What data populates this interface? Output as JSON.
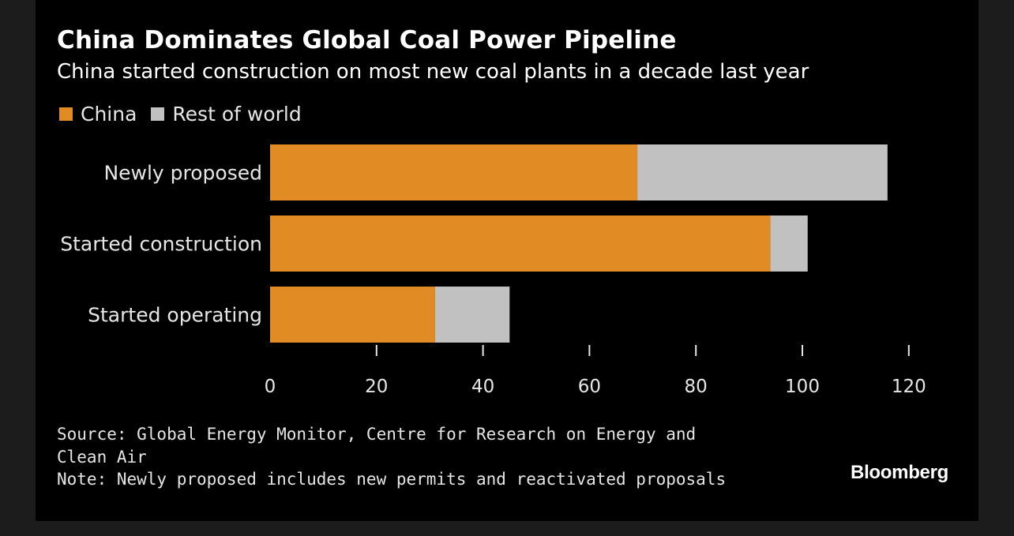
{
  "header": {
    "title": "China Dominates Global Coal Power Pipeline",
    "subtitle": "China started construction on most new coal plants in a decade last year"
  },
  "colors": {
    "china": "#e08b24",
    "rest_of_world": "#c1c1c1",
    "background": "#000000",
    "text": "#e6e6e6"
  },
  "chart_data": {
    "type": "bar",
    "orientation": "horizontal",
    "stacked": true,
    "categories": [
      "Newly proposed",
      "Started construction",
      "Started operating"
    ],
    "series": [
      {
        "name": "China",
        "values": [
          69,
          94,
          31
        ]
      },
      {
        "name": "Rest of world",
        "values": [
          47,
          7,
          14
        ]
      }
    ],
    "xlim": [
      0,
      120
    ],
    "xticks": [
      0,
      20,
      40,
      60,
      80,
      100,
      120
    ],
    "title": "China Dominates Global Coal Power Pipeline",
    "legend_position": "top-left",
    "grid": false
  },
  "footer": {
    "source_line1": "Source: Global Energy Monitor, Centre for Research on Energy and",
    "source_line2": "Clean Air",
    "note": "Note: Newly proposed includes new permits and reactivated proposals",
    "brand": "Bloomberg"
  }
}
